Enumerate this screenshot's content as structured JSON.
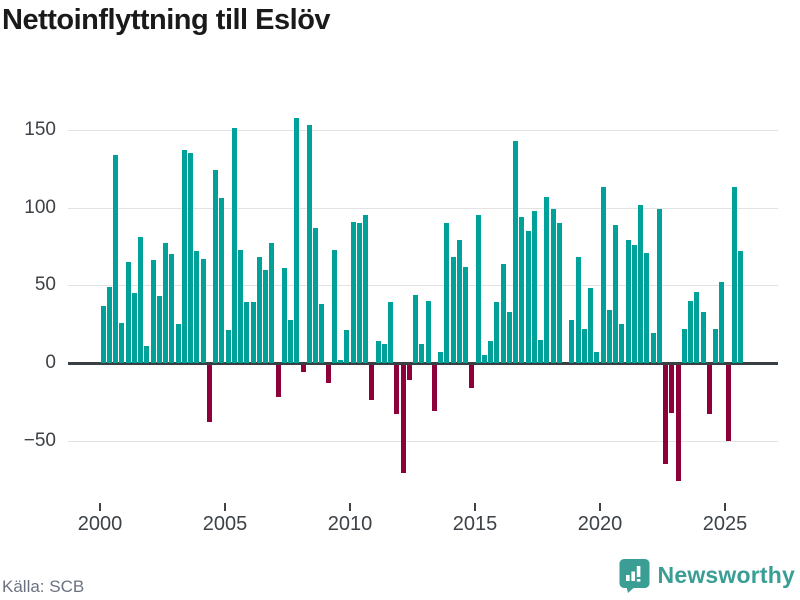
{
  "title": "Nettoinflyttning till Eslöv",
  "source": "Källa: SCB",
  "branding": {
    "name": "Newsworthy",
    "icon": "newsworthy-bubble-chart-icon"
  },
  "colors": {
    "positive_bar": "#00a199",
    "negative_bar": "#8e0039",
    "zero_axis": "#3a3f44",
    "grid": "#e3e3e3",
    "axis_text": "#3d4247",
    "muted_text": "#6b7280",
    "brand_teal": "#3a9e95",
    "title_text": "#1a1a1a"
  },
  "chart_data": {
    "type": "bar",
    "title": "Nettoinflyttning till Eslöv",
    "x_unit": "quarter",
    "start_period": "2000Q1",
    "end_period": "2025Q3",
    "x_tick_years": [
      2000,
      2005,
      2010,
      2015,
      2020,
      2025
    ],
    "x_tick_labels": [
      "2000",
      "2005",
      "2010",
      "2015",
      "2020",
      "2025"
    ],
    "y_ticks": [
      -50,
      0,
      50,
      100,
      150
    ],
    "y_tick_labels": [
      "−50",
      "0",
      "50",
      "100",
      "150"
    ],
    "ylim": [
      -85,
      170
    ],
    "grid": "horizontal",
    "legend": "none",
    "series": [
      {
        "name": "Nettoinflyttning",
        "values": [
          37,
          49,
          134,
          26,
          65,
          45,
          81,
          11,
          66,
          43,
          77,
          70,
          25,
          137,
          135,
          72,
          67,
          -37,
          124,
          106,
          21,
          151,
          73,
          39,
          39,
          68,
          60,
          77,
          -21,
          61,
          28,
          158,
          -5,
          153,
          87,
          38,
          -12,
          73,
          2,
          21,
          91,
          90,
          95,
          -23,
          14,
          12,
          39,
          -32,
          -70,
          -10,
          44,
          12,
          40,
          -30,
          7,
          90,
          68,
          79,
          62,
          -15,
          95,
          5,
          14,
          39,
          64,
          33,
          143,
          94,
          85,
          98,
          15,
          107,
          99,
          90,
          0,
          28,
          68,
          22,
          48,
          7,
          113,
          34,
          89,
          25,
          79,
          76,
          102,
          71,
          19,
          99,
          -64,
          -31,
          -75,
          22,
          40,
          46,
          33,
          -32,
          22,
          52,
          -49,
          113,
          72
        ]
      }
    ]
  }
}
